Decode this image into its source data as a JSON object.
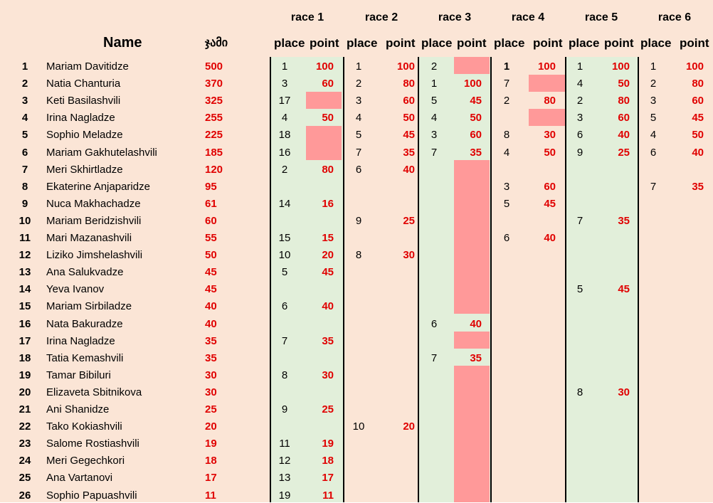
{
  "header": {
    "name_label": "Name",
    "total_label": "ჯამი",
    "place_label": "place",
    "point_label": "point",
    "races": [
      "race 1",
      "race 2",
      "race 3",
      "race 4",
      "race 5",
      "race 6"
    ]
  },
  "colors": {
    "background": "#fbe5d6",
    "race_band": "#e2efda",
    "missing_result": "#ff9999",
    "points_text": "#e00000"
  },
  "rows": [
    {
      "rank": "1",
      "name": "Mariam Davitidze",
      "total": "500",
      "races": [
        [
          "1",
          "100"
        ],
        [
          "1",
          "100"
        ],
        [
          "2",
          ""
        ],
        [
          "1",
          "100"
        ],
        [
          "1",
          "100"
        ],
        [
          "1",
          "100"
        ]
      ]
    },
    {
      "rank": "2",
      "name": "Natia Chanturia",
      "total": "370",
      "races": [
        [
          "3",
          "60"
        ],
        [
          "2",
          "80"
        ],
        [
          "1",
          "100"
        ],
        [
          "7",
          ""
        ],
        [
          "4",
          "50"
        ],
        [
          "2",
          "80"
        ]
      ]
    },
    {
      "rank": "3",
      "name": "Keti Basilashvili",
      "total": "325",
      "races": [
        [
          "17",
          ""
        ],
        [
          "3",
          "60"
        ],
        [
          "5",
          "45"
        ],
        [
          "2",
          "80"
        ],
        [
          "2",
          "80"
        ],
        [
          "3",
          "60"
        ]
      ]
    },
    {
      "rank": "4",
      "name": "Irina Nagladze",
      "total": "255",
      "races": [
        [
          "4",
          "50"
        ],
        [
          "4",
          "50"
        ],
        [
          "4",
          "50"
        ],
        [
          "",
          ""
        ],
        [
          "3",
          "60"
        ],
        [
          "5",
          "45"
        ]
      ]
    },
    {
      "rank": "5",
      "name": "Sophio Meladze",
      "total": "225",
      "races": [
        [
          "18",
          ""
        ],
        [
          "5",
          "45"
        ],
        [
          "3",
          "60"
        ],
        [
          "8",
          "30"
        ],
        [
          "6",
          "40"
        ],
        [
          "4",
          "50"
        ]
      ]
    },
    {
      "rank": "6",
      "name": "Mariam Gakhutelashvili",
      "total": "185",
      "races": [
        [
          "16",
          ""
        ],
        [
          "7",
          "35"
        ],
        [
          "7",
          "35"
        ],
        [
          "4",
          "50"
        ],
        [
          "9",
          "25"
        ],
        [
          "6",
          "40"
        ]
      ]
    },
    {
      "rank": "7",
      "name": "Meri Skhirtladze",
      "total": "120",
      "races": [
        [
          "2",
          "80"
        ],
        [
          "6",
          "40"
        ],
        [
          "",
          ""
        ],
        [
          "",
          ""
        ],
        [
          "",
          ""
        ],
        [
          "",
          ""
        ]
      ]
    },
    {
      "rank": "8",
      "name": "Ekaterine Anjaparidze",
      "total": "95",
      "races": [
        [
          "",
          ""
        ],
        [
          "",
          ""
        ],
        [
          "",
          ""
        ],
        [
          "3",
          "60"
        ],
        [
          "",
          ""
        ],
        [
          "7",
          "35"
        ]
      ]
    },
    {
      "rank": "9",
      "name": "Nuca Makhachadze",
      "total": "61",
      "races": [
        [
          "14",
          "16"
        ],
        [
          "",
          ""
        ],
        [
          "",
          ""
        ],
        [
          "5",
          "45"
        ],
        [
          "",
          ""
        ],
        [
          "",
          ""
        ]
      ]
    },
    {
      "rank": "10",
      "name": "Mariam Beridzishvili",
      "total": "60",
      "races": [
        [
          "",
          ""
        ],
        [
          "9",
          "25"
        ],
        [
          "",
          ""
        ],
        [
          "",
          ""
        ],
        [
          "7",
          "35"
        ],
        [
          "",
          ""
        ]
      ]
    },
    {
      "rank": "11",
      "name": "Mari Mazanashvili",
      "total": "55",
      "races": [
        [
          "15",
          "15"
        ],
        [
          "",
          ""
        ],
        [
          "",
          ""
        ],
        [
          "6",
          "40"
        ],
        [
          "",
          ""
        ],
        [
          "",
          ""
        ]
      ]
    },
    {
      "rank": "12",
      "name": "Liziko Jimshelashvili",
      "total": "50",
      "races": [
        [
          "10",
          "20"
        ],
        [
          "8",
          "30"
        ],
        [
          "",
          ""
        ],
        [
          "",
          ""
        ],
        [
          "",
          ""
        ],
        [
          "",
          ""
        ]
      ]
    },
    {
      "rank": "13",
      "name": "Ana Salukvadze",
      "total": "45",
      "races": [
        [
          "5",
          "45"
        ],
        [
          "",
          ""
        ],
        [
          "",
          ""
        ],
        [
          "",
          ""
        ],
        [
          "",
          ""
        ],
        [
          "",
          ""
        ]
      ]
    },
    {
      "rank": "14",
      "name": "Yeva Ivanov",
      "total": "45",
      "races": [
        [
          "",
          ""
        ],
        [
          "",
          ""
        ],
        [
          "",
          ""
        ],
        [
          "",
          ""
        ],
        [
          "5",
          "45"
        ],
        [
          "",
          ""
        ]
      ]
    },
    {
      "rank": "15",
      "name": "Mariam Sirbiladze",
      "total": "40",
      "races": [
        [
          "6",
          "40"
        ],
        [
          "",
          ""
        ],
        [
          "",
          ""
        ],
        [
          "",
          ""
        ],
        [
          "",
          ""
        ],
        [
          "",
          ""
        ]
      ]
    },
    {
      "rank": "16",
      "name": "Nata Bakuradze",
      "total": "40",
      "races": [
        [
          "",
          ""
        ],
        [
          "",
          ""
        ],
        [
          "6",
          "40"
        ],
        [
          "",
          ""
        ],
        [
          "",
          ""
        ],
        [
          "",
          ""
        ]
      ]
    },
    {
      "rank": "17",
      "name": "Irina Nagladze",
      "total": "35",
      "races": [
        [
          "7",
          "35"
        ],
        [
          "",
          ""
        ],
        [
          "",
          ""
        ],
        [
          "",
          ""
        ],
        [
          "",
          ""
        ],
        [
          "",
          ""
        ]
      ]
    },
    {
      "rank": "18",
      "name": "Tatia Kemashvili",
      "total": "35",
      "races": [
        [
          "",
          ""
        ],
        [
          "",
          ""
        ],
        [
          "7",
          "35"
        ],
        [
          "",
          ""
        ],
        [
          "",
          ""
        ],
        [
          "",
          ""
        ]
      ]
    },
    {
      "rank": "19",
      "name": "Tamar Bibiluri",
      "total": "30",
      "races": [
        [
          "8",
          "30"
        ],
        [
          "",
          ""
        ],
        [
          "",
          ""
        ],
        [
          "",
          ""
        ],
        [
          "",
          ""
        ],
        [
          "",
          ""
        ]
      ]
    },
    {
      "rank": "20",
      "name": "Elizaveta Sbitnikova",
      "total": "30",
      "races": [
        [
          "",
          ""
        ],
        [
          "",
          ""
        ],
        [
          "",
          ""
        ],
        [
          "",
          ""
        ],
        [
          "8",
          "30"
        ],
        [
          "",
          ""
        ]
      ]
    },
    {
      "rank": "21",
      "name": "Ani Shanidze",
      "total": "25",
      "races": [
        [
          "9",
          "25"
        ],
        [
          "",
          ""
        ],
        [
          "",
          ""
        ],
        [
          "",
          ""
        ],
        [
          "",
          ""
        ],
        [
          "",
          ""
        ]
      ]
    },
    {
      "rank": "22",
      "name": "Tako Kokiashvili",
      "total": "20",
      "races": [
        [
          "",
          ""
        ],
        [
          "10",
          "20"
        ],
        [
          "",
          ""
        ],
        [
          "",
          ""
        ],
        [
          "",
          ""
        ],
        [
          "",
          ""
        ]
      ]
    },
    {
      "rank": "23",
      "name": "Salome Rostiashvili",
      "total": "19",
      "races": [
        [
          "11",
          "19"
        ],
        [
          "",
          ""
        ],
        [
          "",
          ""
        ],
        [
          "",
          ""
        ],
        [
          "",
          ""
        ],
        [
          "",
          ""
        ]
      ]
    },
    {
      "rank": "24",
      "name": "Meri Gegechkori",
      "total": "18",
      "races": [
        [
          "12",
          "18"
        ],
        [
          "",
          ""
        ],
        [
          "",
          ""
        ],
        [
          "",
          ""
        ],
        [
          "",
          ""
        ],
        [
          "",
          ""
        ]
      ]
    },
    {
      "rank": "25",
      "name": "Ana Vartanovi",
      "total": "17",
      "races": [
        [
          "13",
          "17"
        ],
        [
          "",
          ""
        ],
        [
          "",
          ""
        ],
        [
          "",
          ""
        ],
        [
          "",
          ""
        ],
        [
          "",
          ""
        ]
      ]
    },
    {
      "rank": "26",
      "name": "Sophio Papuashvili",
      "total": "11",
      "races": [
        [
          "19",
          "11"
        ],
        [
          "",
          ""
        ],
        [
          "",
          ""
        ],
        [
          "",
          ""
        ],
        [
          "",
          ""
        ],
        [
          "",
          ""
        ]
      ]
    }
  ]
}
